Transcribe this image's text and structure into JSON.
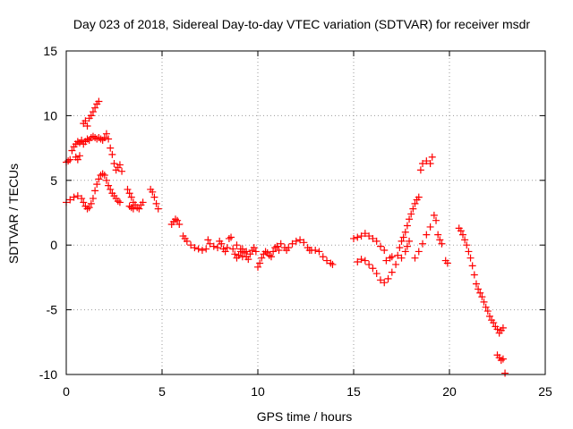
{
  "chart_data": {
    "type": "scatter",
    "title": "Day 023 of 2018, Sidereal Day-to-day VTEC variation (SDTVAR) for receiver msdr",
    "xlabel": "GPS time / hours",
    "ylabel": "SDTVAR / TECUs",
    "xlim": [
      0,
      25
    ],
    "ylim": [
      -10,
      15
    ],
    "xticks": [
      0,
      5,
      10,
      15,
      20,
      25
    ],
    "yticks": [
      -10,
      -5,
      0,
      5,
      10,
      15
    ],
    "xtick_labels": [
      "0",
      "5",
      "10",
      "15",
      "20",
      "25"
    ],
    "ytick_labels": [
      "-10",
      "-5",
      "0",
      "5",
      "10",
      "15"
    ],
    "grid": true,
    "marker": "+",
    "color": "#ff0000",
    "series": [
      {
        "name": "SDTVAR",
        "points": [
          [
            0.0,
            6.4
          ],
          [
            0.1,
            6.5
          ],
          [
            0.2,
            6.6
          ],
          [
            0.3,
            7.3
          ],
          [
            0.4,
            7.6
          ],
          [
            0.5,
            7.8
          ],
          [
            0.6,
            8.0
          ],
          [
            0.7,
            7.9
          ],
          [
            0.8,
            8.1
          ],
          [
            0.9,
            7.8
          ],
          [
            1.0,
            8.0
          ],
          [
            1.1,
            8.2
          ],
          [
            1.2,
            8.1
          ],
          [
            1.3,
            8.3
          ],
          [
            1.4,
            8.4
          ],
          [
            1.5,
            8.3
          ],
          [
            1.6,
            8.2
          ],
          [
            1.7,
            8.3
          ],
          [
            1.8,
            8.2
          ],
          [
            1.9,
            8.1
          ],
          [
            2.0,
            8.3
          ],
          [
            2.1,
            8.6
          ],
          [
            2.2,
            8.2
          ],
          [
            2.3,
            7.5
          ],
          [
            2.4,
            7.0
          ],
          [
            2.5,
            6.3
          ],
          [
            2.6,
            5.8
          ],
          [
            0.5,
            6.8
          ],
          [
            0.6,
            6.6
          ],
          [
            0.7,
            6.9
          ],
          [
            0.9,
            9.4
          ],
          [
            1.0,
            9.6
          ],
          [
            1.1,
            9.2
          ],
          [
            1.2,
            9.8
          ],
          [
            1.3,
            10.0
          ],
          [
            1.4,
            10.3
          ],
          [
            1.5,
            10.6
          ],
          [
            1.6,
            10.9
          ],
          [
            1.7,
            11.1
          ],
          [
            0.0,
            3.3
          ],
          [
            0.2,
            3.5
          ],
          [
            0.4,
            3.7
          ],
          [
            0.6,
            3.8
          ],
          [
            0.8,
            3.6
          ],
          [
            0.9,
            3.3
          ],
          [
            1.0,
            3.0
          ],
          [
            1.1,
            2.8
          ],
          [
            1.2,
            2.9
          ],
          [
            1.3,
            3.2
          ],
          [
            1.4,
            3.6
          ],
          [
            1.5,
            4.2
          ],
          [
            1.6,
            4.7
          ],
          [
            1.7,
            5.1
          ],
          [
            1.8,
            5.4
          ],
          [
            1.9,
            5.5
          ],
          [
            2.0,
            5.4
          ],
          [
            2.1,
            5.0
          ],
          [
            2.2,
            4.6
          ],
          [
            2.3,
            4.3
          ],
          [
            2.4,
            4.0
          ],
          [
            2.5,
            3.8
          ],
          [
            2.6,
            3.6
          ],
          [
            2.7,
            3.4
          ],
          [
            2.8,
            3.3
          ],
          [
            2.7,
            6.0
          ],
          [
            2.8,
            6.2
          ],
          [
            2.9,
            5.7
          ],
          [
            3.2,
            4.3
          ],
          [
            3.3,
            4.0
          ],
          [
            3.4,
            3.7
          ],
          [
            3.5,
            3.3
          ],
          [
            3.6,
            3.1
          ],
          [
            3.7,
            2.9
          ],
          [
            3.8,
            2.8
          ],
          [
            3.9,
            3.1
          ],
          [
            4.0,
            3.3
          ],
          [
            3.3,
            3.0
          ],
          [
            3.4,
            2.9
          ],
          [
            3.5,
            2.8
          ],
          [
            4.4,
            4.3
          ],
          [
            4.5,
            4.1
          ],
          [
            4.6,
            3.7
          ],
          [
            4.7,
            3.2
          ],
          [
            4.8,
            2.8
          ],
          [
            5.5,
            1.6
          ],
          [
            5.6,
            1.8
          ],
          [
            5.7,
            2.0
          ],
          [
            5.8,
            1.9
          ],
          [
            5.9,
            1.6
          ],
          [
            6.1,
            0.7
          ],
          [
            6.2,
            0.5
          ],
          [
            6.3,
            0.3
          ],
          [
            6.5,
            0.0
          ],
          [
            6.7,
            -0.2
          ],
          [
            6.9,
            -0.3
          ],
          [
            7.1,
            -0.4
          ],
          [
            7.3,
            -0.3
          ],
          [
            7.4,
            0.4
          ],
          [
            7.5,
            0.1
          ],
          [
            7.7,
            -0.1
          ],
          [
            7.9,
            -0.2
          ],
          [
            8.0,
            0.3
          ],
          [
            8.1,
            0.1
          ],
          [
            8.2,
            -0.3
          ],
          [
            8.3,
            -0.5
          ],
          [
            8.4,
            -0.2
          ],
          [
            8.5,
            0.5
          ],
          [
            8.6,
            0.6
          ],
          [
            8.7,
            -0.3
          ],
          [
            8.8,
            -0.7
          ],
          [
            8.9,
            -1.0
          ],
          [
            9.0,
            -0.8
          ],
          [
            9.1,
            -0.5
          ],
          [
            9.2,
            -0.3
          ],
          [
            9.3,
            -0.6
          ],
          [
            9.4,
            -0.9
          ],
          [
            9.5,
            -1.1
          ],
          [
            9.6,
            -0.7
          ],
          [
            9.7,
            -0.4
          ],
          [
            9.8,
            -0.2
          ],
          [
            9.9,
            -0.5
          ],
          [
            10.0,
            -1.7
          ],
          [
            10.1,
            -1.4
          ],
          [
            10.2,
            -1.0
          ],
          [
            10.3,
            -0.7
          ],
          [
            10.4,
            -0.5
          ],
          [
            10.5,
            -0.6
          ],
          [
            10.6,
            -0.8
          ],
          [
            10.7,
            -0.9
          ],
          [
            10.8,
            -0.5
          ],
          [
            10.9,
            -0.2
          ],
          [
            11.0,
            -0.1
          ],
          [
            11.1,
            -0.4
          ],
          [
            11.2,
            0.1
          ],
          [
            11.4,
            -0.2
          ],
          [
            11.5,
            -0.4
          ],
          [
            11.6,
            -0.2
          ],
          [
            11.8,
            0.1
          ],
          [
            12.0,
            0.3
          ],
          [
            12.2,
            0.4
          ],
          [
            12.4,
            0.2
          ],
          [
            12.6,
            -0.2
          ],
          [
            12.7,
            -0.4
          ],
          [
            12.8,
            -0.4
          ],
          [
            13.0,
            -0.4
          ],
          [
            13.2,
            -0.5
          ],
          [
            13.4,
            -0.9
          ],
          [
            13.6,
            -1.2
          ],
          [
            13.8,
            -1.4
          ],
          [
            13.9,
            -1.5
          ],
          [
            8.9,
            0.0
          ],
          [
            9.1,
            -0.3
          ],
          [
            9.2,
            -0.9
          ],
          [
            9.4,
            -0.5
          ],
          [
            15.0,
            0.5
          ],
          [
            15.2,
            0.6
          ],
          [
            15.4,
            0.7
          ],
          [
            15.6,
            0.9
          ],
          [
            15.8,
            0.7
          ],
          [
            16.0,
            0.5
          ],
          [
            16.2,
            0.3
          ],
          [
            16.4,
            -0.1
          ],
          [
            16.6,
            -0.4
          ],
          [
            15.2,
            -1.3
          ],
          [
            15.4,
            -1.1
          ],
          [
            15.6,
            -1.2
          ],
          [
            15.8,
            -1.5
          ],
          [
            16.0,
            -1.8
          ],
          [
            16.2,
            -2.2
          ],
          [
            16.4,
            -2.7
          ],
          [
            16.6,
            -2.9
          ],
          [
            16.8,
            -2.6
          ],
          [
            17.0,
            -2.1
          ],
          [
            17.2,
            -1.5
          ],
          [
            17.3,
            -0.8
          ],
          [
            16.7,
            -1.2
          ],
          [
            16.9,
            -1.0
          ],
          [
            17.0,
            -0.9
          ],
          [
            17.4,
            -0.2
          ],
          [
            17.5,
            0.3
          ],
          [
            17.6,
            0.6
          ],
          [
            17.7,
            1.0
          ],
          [
            17.8,
            1.5
          ],
          [
            17.9,
            2.0
          ],
          [
            18.0,
            2.4
          ],
          [
            18.1,
            2.8
          ],
          [
            18.2,
            3.2
          ],
          [
            18.3,
            3.5
          ],
          [
            18.4,
            3.7
          ],
          [
            18.5,
            5.8
          ],
          [
            18.6,
            6.3
          ],
          [
            18.8,
            6.5
          ],
          [
            19.0,
            6.3
          ],
          [
            19.1,
            6.8
          ],
          [
            17.5,
            -1.0
          ],
          [
            17.7,
            -0.5
          ],
          [
            17.8,
            -0.1
          ],
          [
            17.9,
            0.3
          ],
          [
            18.2,
            -1.0
          ],
          [
            18.4,
            -0.5
          ],
          [
            18.6,
            0.1
          ],
          [
            18.8,
            0.8
          ],
          [
            19.0,
            1.4
          ],
          [
            19.2,
            2.3
          ],
          [
            19.3,
            1.9
          ],
          [
            19.4,
            0.8
          ],
          [
            19.5,
            0.4
          ],
          [
            19.6,
            0.1
          ],
          [
            19.8,
            -1.2
          ],
          [
            19.9,
            -1.4
          ],
          [
            20.5,
            1.3
          ],
          [
            20.6,
            1.1
          ],
          [
            20.7,
            0.8
          ],
          [
            20.8,
            0.4
          ],
          [
            20.9,
            0.0
          ],
          [
            21.0,
            -0.5
          ],
          [
            21.1,
            -1.0
          ],
          [
            21.2,
            -1.6
          ],
          [
            21.3,
            -2.3
          ],
          [
            21.4,
            -3.0
          ],
          [
            21.5,
            -3.4
          ],
          [
            21.6,
            -3.7
          ],
          [
            21.7,
            -4.0
          ],
          [
            21.8,
            -4.4
          ],
          [
            21.9,
            -4.8
          ],
          [
            22.0,
            -5.1
          ],
          [
            22.1,
            -5.5
          ],
          [
            22.2,
            -5.8
          ],
          [
            22.3,
            -6.0
          ],
          [
            22.4,
            -6.3
          ],
          [
            22.5,
            -6.5
          ],
          [
            22.6,
            -6.8
          ],
          [
            22.7,
            -6.6
          ],
          [
            22.8,
            -6.4
          ],
          [
            22.5,
            -8.5
          ],
          [
            22.6,
            -8.7
          ],
          [
            22.7,
            -8.9
          ],
          [
            22.8,
            -8.8
          ],
          [
            22.9,
            -9.9
          ]
        ]
      }
    ]
  }
}
